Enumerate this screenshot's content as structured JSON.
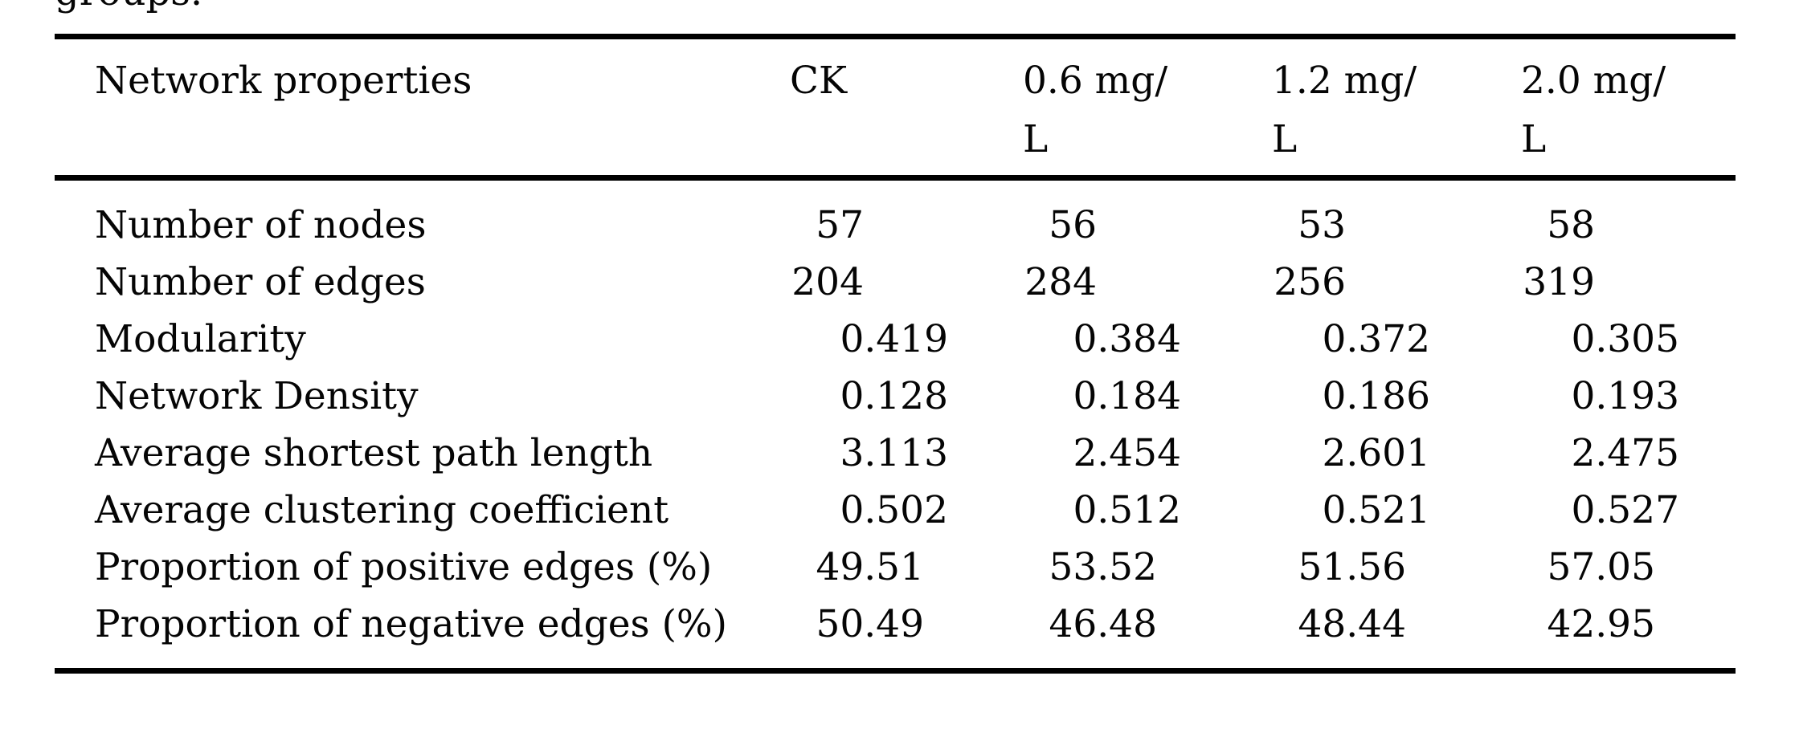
{
  "caption_fragment": "groups.",
  "table": {
    "header": {
      "property_label": "Network properties",
      "columns": [
        {
          "label": "CK",
          "line1": "CK",
          "line2": ""
        },
        {
          "label": "0.6 mg/L",
          "line1": "0.6 mg/",
          "line2": "L"
        },
        {
          "label": "1.2 mg/L",
          "line1": "1.2 mg/",
          "line2": "L"
        },
        {
          "label": "2.0 mg/L",
          "line1": "2.0 mg/",
          "line2": "L"
        }
      ]
    },
    "rows": [
      {
        "label": "Number of nodes",
        "values": [
          "57",
          "56",
          "53",
          "58"
        ]
      },
      {
        "label": "Number of edges",
        "values": [
          "204",
          "284",
          "256",
          "319"
        ]
      },
      {
        "label": "Modularity",
        "values": [
          "0.419",
          "0.384",
          "0.372",
          "0.305"
        ]
      },
      {
        "label": "Network Density",
        "values": [
          "0.128",
          "0.184",
          "0.186",
          "0.193"
        ]
      },
      {
        "label": "Average shortest path length",
        "values": [
          "3.113",
          "2.454",
          "2.601",
          "2.475"
        ]
      },
      {
        "label": "Average clustering coefficient",
        "values": [
          "0.502",
          "0.512",
          "0.521",
          "0.527"
        ]
      },
      {
        "label": "Proportion of positive edges (%)",
        "values": [
          "49.51",
          "53.52",
          "51.56",
          "57.05"
        ]
      },
      {
        "label": "Proportion of negative edges (%)",
        "values": [
          "50.49",
          "46.48",
          "48.44",
          "42.95"
        ]
      }
    ]
  }
}
